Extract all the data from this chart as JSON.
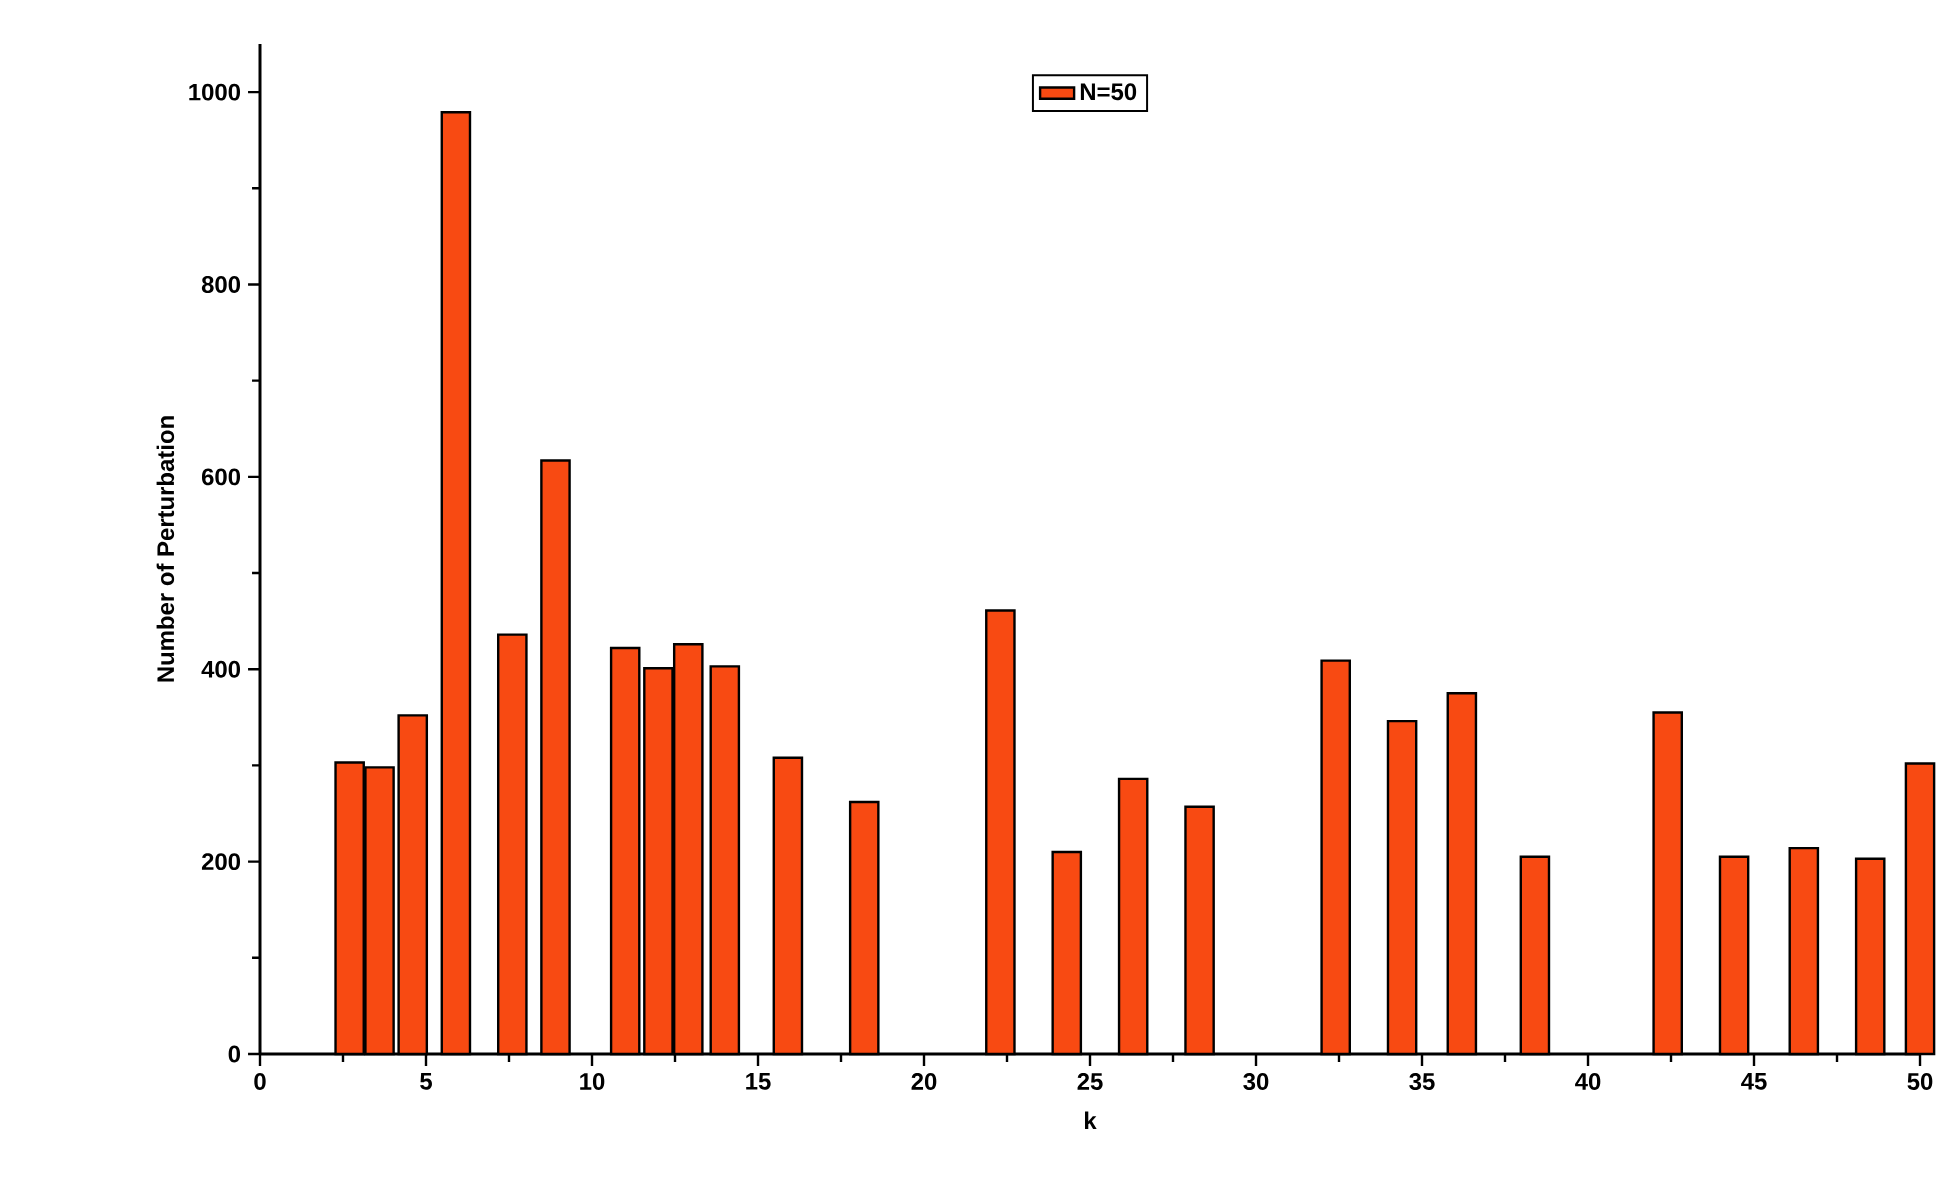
{
  "chart_data": {
    "type": "bar",
    "xlabel": "k",
    "ylabel": "Number of Perturbation",
    "x": [
      2.7,
      3.6,
      4.6,
      5.9,
      7.6,
      8.9,
      11.0,
      12.0,
      12.9,
      14.0,
      15.9,
      18.2,
      22.3,
      24.3,
      26.3,
      28.3,
      32.4,
      34.4,
      36.2,
      38.4,
      42.4,
      44.4,
      46.5,
      48.5,
      50
    ],
    "series": [
      {
        "name": "N=50",
        "color": "#f84a12",
        "values": [
          303,
          298,
          352,
          979,
          436,
          617,
          422,
          401,
          426,
          403,
          308,
          262,
          461,
          210,
          286,
          257,
          409,
          346,
          375,
          205,
          355,
          205,
          214,
          203,
          302
        ]
      }
    ],
    "xlim": [
      0,
      50
    ],
    "ylim": [
      0,
      1050
    ],
    "xticks": [
      0,
      5,
      10,
      15,
      20,
      25,
      30,
      35,
      40,
      45,
      50
    ],
    "yticks": [
      0,
      200,
      400,
      600,
      800,
      1000
    ],
    "legend": "top",
    "grid": false
  }
}
